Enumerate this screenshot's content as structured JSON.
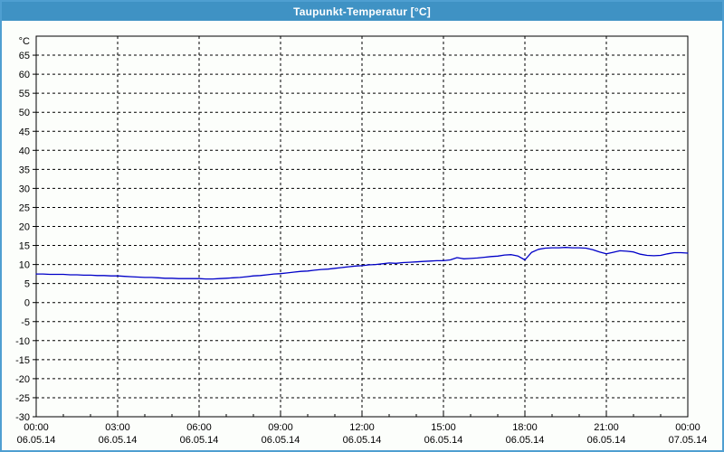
{
  "window": {
    "title": "Taupunkt-Temperatur [°C]"
  },
  "colors": {
    "titlebar_bg": "#3f92c4",
    "titlebar_text": "#ffffff",
    "window_border": "#4f9fd1",
    "content_bg": "#fcfefb",
    "grid": "#000000",
    "axis": "#000000",
    "series": "#0000c8",
    "label_text": "#000000"
  },
  "chart_data": {
    "type": "line",
    "title": "Taupunkt-Temperatur [°C]",
    "ylabel": "°C",
    "ylim": [
      -30,
      70
    ],
    "ytick_step": 5,
    "ytick_labels": [
      65,
      60,
      55,
      50,
      45,
      40,
      35,
      30,
      25,
      20,
      15,
      10,
      5,
      0,
      -5,
      -10,
      -15,
      -20,
      -25,
      -30
    ],
    "grid": "dashed",
    "legend_position": "none",
    "x_hours_range": [
      0,
      24
    ],
    "minor_tick_hours": 1,
    "xticks": [
      {
        "hour": 0,
        "time": "00:00",
        "date": "06.05.14"
      },
      {
        "hour": 3,
        "time": "03:00",
        "date": "06.05.14"
      },
      {
        "hour": 6,
        "time": "06:00",
        "date": "06.05.14"
      },
      {
        "hour": 9,
        "time": "09:00",
        "date": "06.05.14"
      },
      {
        "hour": 12,
        "time": "12:00",
        "date": "06.05.14"
      },
      {
        "hour": 15,
        "time": "15:00",
        "date": "06.05.14"
      },
      {
        "hour": 18,
        "time": "18:00",
        "date": "06.05.14"
      },
      {
        "hour": 21,
        "time": "21:00",
        "date": "06.05.14"
      },
      {
        "hour": 24,
        "time": "00:00",
        "date": "07.05.14"
      }
    ],
    "series": [
      {
        "name": "Taupunkt",
        "color": "#0000c8",
        "x": [
          0,
          0.25,
          0.5,
          0.75,
          1,
          1.25,
          1.5,
          1.75,
          2,
          2.25,
          2.5,
          2.75,
          3,
          3.25,
          3.5,
          3.75,
          4,
          4.25,
          4.5,
          4.75,
          5,
          5.25,
          5.5,
          5.75,
          6,
          6.25,
          6.5,
          6.75,
          7,
          7.25,
          7.5,
          7.75,
          8,
          8.25,
          8.5,
          8.75,
          9,
          9.25,
          9.5,
          9.75,
          10,
          10.25,
          10.5,
          10.75,
          11,
          11.25,
          11.5,
          11.75,
          12,
          12.25,
          12.5,
          12.75,
          13,
          13.25,
          13.5,
          13.75,
          14,
          14.25,
          14.5,
          14.75,
          15,
          15.25,
          15.5,
          15.75,
          16,
          16.25,
          16.5,
          16.75,
          17,
          17.25,
          17.5,
          17.75,
          18,
          18.25,
          18.5,
          18.75,
          19,
          19.25,
          19.5,
          19.75,
          20,
          20.25,
          20.5,
          20.75,
          21,
          21.25,
          21.5,
          21.75,
          22,
          22.25,
          22.5,
          22.75,
          23,
          23.25,
          23.5,
          23.75,
          24
        ],
        "y": [
          7.5,
          7.5,
          7.4,
          7.4,
          7.4,
          7.3,
          7.3,
          7.2,
          7.2,
          7.1,
          7.1,
          7.0,
          7.0,
          6.9,
          6.8,
          6.7,
          6.6,
          6.6,
          6.5,
          6.4,
          6.4,
          6.3,
          6.3,
          6.3,
          6.3,
          6.2,
          6.2,
          6.3,
          6.4,
          6.5,
          6.6,
          6.8,
          7.0,
          7.1,
          7.3,
          7.5,
          7.6,
          7.8,
          8.0,
          8.2,
          8.3,
          8.5,
          8.7,
          8.8,
          9.0,
          9.2,
          9.4,
          9.6,
          9.7,
          9.9,
          10.0,
          10.2,
          10.4,
          10.3,
          10.5,
          10.6,
          10.7,
          10.8,
          10.9,
          11.0,
          11.0,
          11.2,
          11.8,
          11.5,
          11.6,
          11.7,
          11.9,
          12.1,
          12.2,
          12.5,
          12.6,
          12.2,
          11.2,
          13.2,
          14.0,
          14.3,
          14.4,
          14.4,
          14.5,
          14.4,
          14.4,
          14.3,
          13.9,
          13.3,
          12.8,
          13.2,
          13.6,
          13.5,
          13.3,
          12.7,
          12.4,
          12.3,
          12.4,
          12.8,
          13.1,
          13.1,
          13.0
        ]
      }
    ]
  }
}
